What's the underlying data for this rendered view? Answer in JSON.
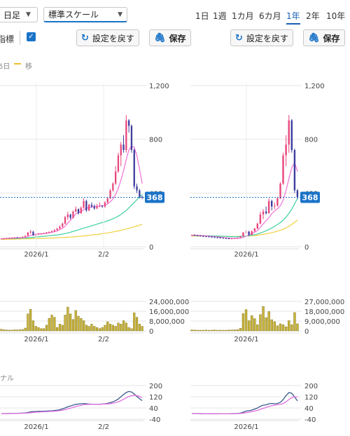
{
  "toolbar": {
    "period_select": "日足",
    "scale_select": "標準スケール",
    "ranges": [
      "1日",
      "1週",
      "1カ月",
      "6カ月",
      "1年",
      "2年",
      "10年"
    ],
    "active_range": "1年",
    "indicator_label": "指標",
    "reset_label": "設定を戻す",
    "save_label": "保存"
  },
  "legend": {
    "ma_short_label": "5日",
    "ma_long_label": "移"
  },
  "signal_label": "ナル",
  "current_price_tag": "368",
  "chart_data": [
    {
      "type": "candlestick",
      "panel": "left-price",
      "x_ticks": [
        "2026/1",
        "2/2"
      ],
      "y_ticks": [
        "1,200",
        "800",
        "400",
        "0"
      ],
      "ylim": [
        0,
        1200
      ],
      "current_price": 368,
      "ohlc": [
        [
          58,
          62,
          56,
          60
        ],
        [
          60,
          64,
          58,
          61
        ],
        [
          61,
          66,
          59,
          63
        ],
        [
          63,
          68,
          61,
          64
        ],
        [
          64,
          70,
          62,
          67
        ],
        [
          67,
          72,
          65,
          69
        ],
        [
          69,
          72,
          66,
          67
        ],
        [
          67,
          71,
          64,
          70
        ],
        [
          70,
          76,
          68,
          74
        ],
        [
          74,
          84,
          72,
          82
        ],
        [
          82,
          110,
          80,
          105
        ],
        [
          105,
          125,
          96,
          112
        ],
        [
          112,
          118,
          80,
          86
        ],
        [
          86,
          96,
          80,
          92
        ],
        [
          92,
          98,
          88,
          95
        ],
        [
          95,
          100,
          90,
          98
        ],
        [
          98,
          104,
          93,
          100
        ],
        [
          100,
          110,
          95,
          106
        ],
        [
          106,
          114,
          100,
          110
        ],
        [
          110,
          120,
          105,
          116
        ],
        [
          116,
          130,
          110,
          124
        ],
        [
          124,
          140,
          118,
          136
        ],
        [
          136,
          160,
          130,
          150
        ],
        [
          150,
          180,
          140,
          172
        ],
        [
          172,
          230,
          165,
          220
        ],
        [
          220,
          260,
          200,
          240
        ],
        [
          240,
          245,
          205,
          215
        ],
        [
          215,
          270,
          212,
          262
        ],
        [
          262,
          300,
          255,
          280
        ],
        [
          280,
          285,
          240,
          250
        ],
        [
          250,
          300,
          245,
          290
        ],
        [
          290,
          360,
          285,
          340
        ],
        [
          340,
          350,
          260,
          270
        ],
        [
          270,
          320,
          265,
          312
        ],
        [
          312,
          330,
          290,
          300
        ],
        [
          300,
          315,
          275,
          285
        ],
        [
          285,
          320,
          280,
          300
        ],
        [
          300,
          330,
          295,
          305
        ],
        [
          305,
          310,
          290,
          300
        ],
        [
          300,
          340,
          290,
          330
        ],
        [
          330,
          370,
          320,
          360
        ],
        [
          360,
          430,
          355,
          420
        ],
        [
          420,
          480,
          410,
          470
        ],
        [
          470,
          600,
          460,
          560
        ],
        [
          560,
          700,
          550,
          680
        ],
        [
          680,
          780,
          600,
          760
        ],
        [
          760,
          830,
          700,
          720
        ],
        [
          720,
          980,
          700,
          940
        ],
        [
          940,
          950,
          850,
          900
        ],
        [
          900,
          910,
          700,
          720
        ],
        [
          720,
          730,
          430,
          450
        ],
        [
          450,
          470,
          400,
          420
        ],
        [
          420,
          430,
          360,
          372
        ],
        [
          372,
          380,
          355,
          368
        ]
      ],
      "ma5": [
        60,
        61,
        62,
        63,
        64,
        65,
        66,
        67,
        68,
        70,
        76,
        85,
        88,
        93,
        98,
        96,
        98,
        100,
        103,
        106,
        112,
        118,
        127,
        138,
        153,
        176,
        197,
        218,
        245,
        253,
        262,
        276,
        288,
        290,
        296,
        301,
        300,
        303,
        306,
        310,
        319,
        335,
        355,
        388,
        434,
        494,
        566,
        648,
        720,
        750,
        740,
        680,
        580,
        470
      ],
      "ma25": [
        60,
        60,
        61,
        61,
        62,
        62,
        63,
        63,
        64,
        65,
        66,
        68,
        70,
        72,
        74,
        76,
        78,
        80,
        82,
        84,
        86,
        88,
        91,
        94,
        98,
        103,
        108,
        114,
        120,
        126,
        132,
        138,
        144,
        150,
        156,
        162,
        168,
        174,
        180,
        186,
        193,
        200,
        208,
        217,
        228,
        240,
        254,
        270,
        290,
        310,
        330,
        350,
        370,
        390
      ],
      "ma75": [
        55,
        55,
        56,
        56,
        57,
        57,
        58,
        58,
        59,
        59,
        60,
        60,
        61,
        61,
        62,
        62,
        63,
        63,
        64,
        65,
        66,
        67,
        68,
        69,
        70,
        71,
        72,
        73,
        75,
        77,
        79,
        81,
        83,
        85,
        87,
        89,
        91,
        94,
        97,
        100,
        103,
        106,
        110,
        114,
        118,
        122,
        127,
        132,
        137,
        142,
        148,
        154,
        160,
        166
      ]
    },
    {
      "type": "bar",
      "panel": "left-volume",
      "x_ticks": [
        "2026/1",
        "2/2"
      ],
      "y_ticks": [
        "24,000,000",
        "16,000,000",
        "8,000,000",
        "0"
      ],
      "ylim": [
        0,
        26000000
      ],
      "values": [
        1500000,
        900000,
        800000,
        700000,
        700000,
        900000,
        800000,
        1000000,
        1200000,
        2500000,
        15000000,
        19000000,
        9000000,
        4000000,
        3000000,
        2000000,
        2000000,
        5000000,
        11000000,
        14000000,
        12000000,
        3000000,
        6000000,
        5000000,
        14000000,
        21000000,
        15000000,
        10000000,
        18000000,
        13000000,
        11000000,
        9000000,
        5000000,
        4000000,
        6000000,
        4000000,
        3000000,
        2000000,
        3000000,
        5000000,
        8000000,
        6000000,
        5000000,
        4000000,
        7000000,
        6000000,
        9000000,
        7000000,
        3000000,
        2000000,
        16000000,
        12000000,
        6000000,
        4000000
      ]
    },
    {
      "type": "line",
      "panel": "left-macd",
      "x_ticks": [
        "2026/1",
        "2/2"
      ],
      "y_ticks": [
        "200",
        "120",
        "40",
        "-40"
      ],
      "ylim": [
        -40,
        200
      ],
      "series": [
        {
          "values": [
            0,
            0,
            0,
            1,
            1,
            2,
            2,
            3,
            3,
            5,
            8,
            12,
            14,
            15,
            16,
            16,
            17,
            18,
            19,
            20,
            22,
            24,
            28,
            33,
            40,
            48,
            54,
            60,
            66,
            68,
            70,
            72,
            70,
            68,
            67,
            66,
            66,
            67,
            68,
            70,
            73,
            78,
            84,
            92,
            104,
            120,
            136,
            150,
            158,
            154,
            140,
            122,
            106,
            92
          ]
        },
        {
          "values": [
            0,
            0,
            0,
            0,
            1,
            1,
            1,
            2,
            2,
            3,
            4,
            6,
            8,
            10,
            11,
            12,
            13,
            14,
            15,
            16,
            17,
            19,
            21,
            24,
            28,
            33,
            38,
            44,
            50,
            55,
            59,
            63,
            65,
            66,
            66,
            66,
            66,
            66,
            67,
            68,
            69,
            71,
            74,
            78,
            84,
            92,
            102,
            112,
            122,
            128,
            130,
            128,
            122,
            114
          ]
        }
      ]
    },
    {
      "type": "candlestick",
      "panel": "right-price",
      "x_ticks": [
        "2026/1"
      ],
      "y_ticks": [
        "1,200",
        "800",
        "400",
        "0"
      ],
      "ylim": [
        0,
        1200
      ],
      "current_price": 368,
      "ohlc": [
        [
          85,
          90,
          80,
          86
        ],
        [
          86,
          92,
          82,
          84
        ],
        [
          84,
          88,
          78,
          82
        ],
        [
          82,
          86,
          76,
          80
        ],
        [
          80,
          84,
          74,
          78
        ],
        [
          78,
          82,
          72,
          76
        ],
        [
          76,
          80,
          70,
          74
        ],
        [
          74,
          78,
          68,
          72
        ],
        [
          72,
          76,
          66,
          70
        ],
        [
          70,
          74,
          64,
          68
        ],
        [
          68,
          72,
          62,
          66
        ],
        [
          66,
          70,
          60,
          64
        ],
        [
          64,
          68,
          58,
          62
        ],
        [
          62,
          66,
          56,
          60
        ],
        [
          60,
          64,
          56,
          62
        ],
        [
          62,
          66,
          58,
          64
        ],
        [
          64,
          70,
          62,
          68
        ],
        [
          68,
          80,
          66,
          78
        ],
        [
          78,
          110,
          76,
          105
        ],
        [
          105,
          125,
          96,
          112
        ],
        [
          112,
          118,
          80,
          90
        ],
        [
          90,
          120,
          88,
          116
        ],
        [
          116,
          140,
          110,
          136
        ],
        [
          136,
          180,
          130,
          172
        ],
        [
          172,
          260,
          165,
          240
        ],
        [
          240,
          280,
          205,
          262
        ],
        [
          262,
          300,
          240,
          250
        ],
        [
          250,
          360,
          245,
          340
        ],
        [
          340,
          350,
          270,
          300
        ],
        [
          300,
          330,
          280,
          305
        ],
        [
          305,
          370,
          300,
          360
        ],
        [
          360,
          480,
          355,
          470
        ],
        [
          470,
          700,
          460,
          680
        ],
        [
          680,
          830,
          600,
          760
        ],
        [
          760,
          980,
          700,
          940
        ],
        [
          940,
          950,
          700,
          720
        ],
        [
          720,
          730,
          400,
          420
        ],
        [
          420,
          430,
          355,
          368
        ]
      ],
      "ma5": [
        86,
        86,
        85,
        84,
        83,
        81,
        79,
        77,
        75,
        73,
        71,
        69,
        67,
        65,
        63,
        62,
        62,
        64,
        69,
        78,
        88,
        97,
        108,
        121,
        144,
        170,
        194,
        217,
        248,
        265,
        284,
        304,
        349,
        418,
        507,
        587,
        625,
        560
      ],
      "ma25": [
        84,
        84,
        84,
        83,
        83,
        82,
        82,
        81,
        80,
        80,
        79,
        78,
        77,
        76,
        75,
        75,
        75,
        76,
        78,
        80,
        83,
        86,
        90,
        95,
        102,
        110,
        119,
        129,
        140,
        152,
        165,
        180,
        198,
        220,
        248,
        280,
        320,
        360
      ],
      "ma75": [
        80,
        80,
        80,
        80,
        79,
        79,
        79,
        78,
        78,
        78,
        77,
        77,
        77,
        76,
        76,
        76,
        76,
        77,
        78,
        79,
        80,
        82,
        84,
        86,
        89,
        92,
        96,
        100,
        105,
        110,
        116,
        122,
        130,
        140,
        152,
        166,
        182,
        198
      ]
    },
    {
      "type": "bar",
      "panel": "right-volume",
      "x_ticks": [
        "2026/1"
      ],
      "y_ticks": [
        "27,000,000",
        "18,000,000",
        "9,000,000",
        "0"
      ],
      "ylim": [
        0,
        29000000
      ],
      "values": [
        1000000,
        800000,
        700000,
        600000,
        700000,
        800000,
        600000,
        700000,
        800000,
        600000,
        700000,
        600000,
        700000,
        800000,
        900000,
        1000000,
        1200000,
        2500000,
        17000000,
        21000000,
        10000000,
        15000000,
        12000000,
        6000000,
        16000000,
        24000000,
        13000000,
        19000000,
        11000000,
        9000000,
        5000000,
        7000000,
        6000000,
        4000000,
        10000000,
        6000000,
        18000000,
        7000000
      ]
    },
    {
      "type": "line",
      "panel": "right-macd",
      "x_ticks": [
        "2026/1"
      ],
      "y_ticks": [
        "200",
        "120",
        "40",
        "-40"
      ],
      "ylim": [
        -40,
        200
      ],
      "series": [
        {
          "values": [
            0,
            0,
            0,
            -1,
            -1,
            -1,
            -1,
            -2,
            -2,
            -2,
            -2,
            -2,
            -2,
            -2,
            -1,
            0,
            1,
            3,
            10,
            18,
            20,
            25,
            32,
            40,
            52,
            60,
            62,
            70,
            72,
            70,
            72,
            80,
            100,
            128,
            150,
            145,
            118,
            90
          ]
        },
        {
          "values": [
            0,
            0,
            0,
            0,
            -1,
            -1,
            -1,
            -1,
            -1,
            -1,
            -2,
            -2,
            -2,
            -2,
            -2,
            -1,
            0,
            1,
            3,
            6,
            10,
            14,
            18,
            23,
            30,
            37,
            44,
            50,
            56,
            60,
            63,
            66,
            72,
            84,
            100,
            114,
            120,
            118
          ]
        }
      ]
    }
  ]
}
